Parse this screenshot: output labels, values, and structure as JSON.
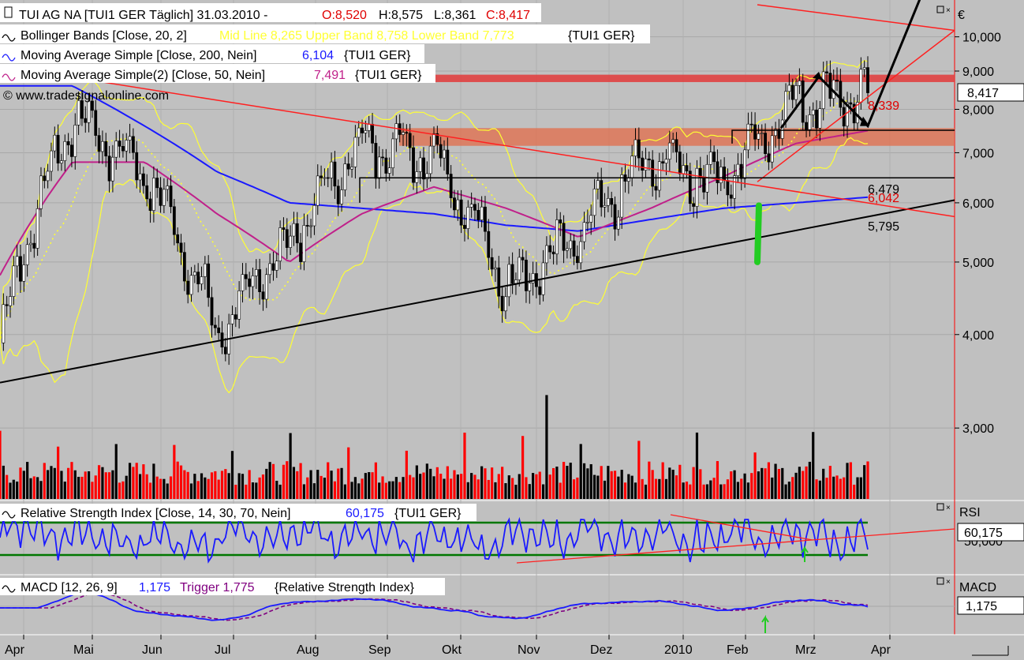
{
  "header": {
    "title": "TUI AG NA [TUI1 GER  Täglich] 31.03.2010 -",
    "o": "O:8,520",
    "h": "H:8,575",
    "l": "L:8,361",
    "c": "C:8,417",
    "bb_prefix": "Bollinger Bands [Close, 20, 2]",
    "bb_values": "Mid Line 8,265 Upper Band 8,758 Lower Band 7,773",
    "bb_suffix": "{TUI1 GER}",
    "ma200_prefix": "Moving Average Simple [Close, 200, Nein]",
    "ma200_value": "6,104",
    "ma200_suffix": "{TUI1 GER}",
    "ma50_prefix": "Moving Average Simple(2) [Close, 50, Nein]",
    "ma50_value": "7,491",
    "ma50_suffix": "{TUI1 GER}",
    "copyright": "© www.tradesignalonline.com"
  },
  "price_axis": {
    "unit": "€",
    "ticks": [
      "10,000",
      "9,000",
      "8,000",
      "7,000",
      "6,000",
      "5,000",
      "4,000",
      "3,000"
    ],
    "last_price": "8,417"
  },
  "price_labels": {
    "support_upper": "8,339",
    "level_1": "6,479",
    "level_2": "6,042",
    "level_3": "5,795"
  },
  "rsi_panel": {
    "prefix": "Relative Strength Index [Close, 14, 30, 70, Nein]",
    "value": "60,175",
    "suffix": "{TUI1 GER}",
    "axis_title": "RSI",
    "axis_value": "60,175",
    "axis_tick": "50,000"
  },
  "macd_panel": {
    "prefix": "MACD [12, 26, 9]",
    "value": "1,175",
    "trigger_label": "Trigger 1,775",
    "suffix": "{Relative Strength Index}",
    "axis_title": "MACD",
    "axis_value": "1,175"
  },
  "time_axis": {
    "labels": [
      "Apr",
      "Mai",
      "Jun",
      "Jul",
      "Aug",
      "Sep",
      "Okt",
      "Nov",
      "Dez",
      "2010",
      "Feb",
      "Mrz",
      "Apr"
    ]
  },
  "colors": {
    "background": "#c0c0c0",
    "up_candle": "#ffffff",
    "down_candle": "#000000",
    "ma200": "#1a1aff",
    "ma50": "#c0208a",
    "bollinger": "#ffff33",
    "trendline_red": "#ff2020",
    "resistance_zone": "#e07050",
    "green_arrow": "#22cc22",
    "volume_red": "#ff0000",
    "volume_black": "#000000",
    "rsi_line": "#1a1aff",
    "rsi_bands": "#007700",
    "macd_line": "#1a1aff",
    "macd_trigger": "#800080"
  },
  "chart_data": {
    "type": "line",
    "title": "TUI AG NA [TUI1 GER  Täglich] 31.03.2010",
    "x": [
      "Apr",
      "Mai",
      "Jun",
      "Jul",
      "Aug",
      "Sep",
      "Okt",
      "Nov",
      "Dez",
      "2010",
      "Feb",
      "Mrz",
      "Apr"
    ],
    "ylabel": "€",
    "yscale": "log",
    "ylim": [
      2.4,
      11.2
    ],
    "last_bar": {
      "open": 8.52,
      "high": 8.575,
      "low": 8.361,
      "close": 8.417
    },
    "series": [
      {
        "name": "Close",
        "values": [
          3.9,
          7.8,
          6.6,
          4.0,
          5.3,
          7.2,
          7.0,
          4.6,
          5.4,
          6.9,
          6.4,
          8.2,
          8.42
        ]
      },
      {
        "name": "Moving Average Simple [Close, 200, Nein]",
        "values": [
          null,
          8.6,
          7.6,
          6.6,
          6.0,
          5.9,
          5.8,
          5.6,
          5.5,
          5.7,
          5.9,
          6.0,
          6.104
        ]
      },
      {
        "name": "Moving Average Simple(2) [Close, 50, Nein]",
        "values": [
          4.8,
          6.8,
          6.8,
          5.8,
          5.0,
          5.8,
          6.3,
          5.9,
          5.4,
          5.9,
          6.5,
          7.2,
          7.491
        ]
      }
    ],
    "bollinger": {
      "mid": 8.265,
      "upper": 8.758,
      "lower": 7.773
    },
    "levels": [
      8.339,
      6.479,
      6.042,
      5.795
    ],
    "rsi": {
      "value": 60.175,
      "bands": [
        30,
        70
      ]
    },
    "macd": {
      "value": 1.175,
      "trigger": 1.775
    }
  }
}
